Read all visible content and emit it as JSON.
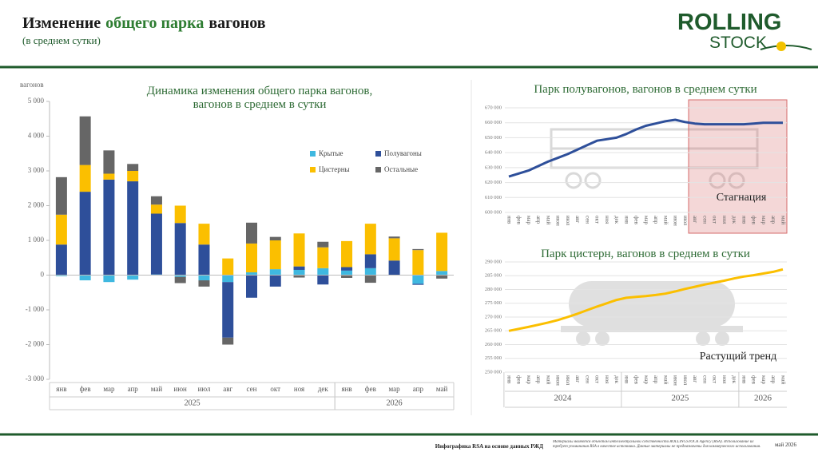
{
  "header": {
    "title_parts": [
      "Изменение",
      "общего парка",
      "вагонов"
    ],
    "subtitle": "(в среднем сутки)",
    "logo": [
      "ROLLING",
      "STOCK"
    ]
  },
  "chart_data": [
    {
      "type": "bar",
      "stacked": true,
      "title": "Динамика изменения общего парка вагонов, вагонов в среднем в сутки",
      "y_label": "вагонов",
      "categories": [
        "янв",
        "фев",
        "мар",
        "апр",
        "май",
        "июн",
        "июл",
        "авг",
        "сен",
        "окт",
        "ноя",
        "дек",
        "янв",
        "фев",
        "мар",
        "апр",
        "май"
      ],
      "year_labels": [
        "2025",
        "2026"
      ],
      "series": [
        {
          "name": "Крытые",
          "color": "#3fb8e0",
          "values": [
            -30,
            -150,
            -200,
            -130,
            20,
            -50,
            -150,
            -200,
            80,
            170,
            150,
            200,
            130,
            200,
            0,
            -250,
            120
          ]
        },
        {
          "name": "Полувагоны",
          "color": "#2e4f9a",
          "values": [
            880,
            2400,
            2750,
            2700,
            1750,
            1500,
            880,
            -1600,
            -650,
            -330,
            100,
            -270,
            100,
            400,
            420,
            -30,
            0
          ]
        },
        {
          "name": "Цистерны",
          "color": "#fbbf00",
          "values": [
            860,
            770,
            170,
            300,
            260,
            500,
            600,
            480,
            830,
            830,
            950,
            600,
            750,
            880,
            640,
            720,
            1100
          ]
        },
        {
          "name": "Остальные",
          "color": "#666666",
          "values": [
            1080,
            1400,
            670,
            200,
            240,
            -180,
            -180,
            -200,
            600,
            100,
            -70,
            160,
            -80,
            -220,
            50,
            30,
            -100
          ]
        }
      ],
      "ylim": [
        -3000,
        5000
      ],
      "yticks": [
        {
          "value": -3000,
          "label": "-3 000"
        },
        {
          "value": -2000,
          "label": "-2 000"
        },
        {
          "value": -1000,
          "label": "-1 000"
        },
        0,
        {
          "value": 1000,
          "label": "1 000"
        },
        {
          "value": 2000,
          "label": "2 000"
        },
        {
          "value": 3000,
          "label": "3 000"
        },
        {
          "value": 4000,
          "label": "4 000"
        },
        {
          "value": 5000,
          "label": "5 000"
        }
      ],
      "legend": "inside-right"
    },
    {
      "type": "line",
      "title": "Парк полувагонов, вагонов в среднем сутки",
      "annotation": "Стагнация",
      "color": "#2e4f9a",
      "categories": [
        "янв",
        "фев",
        "мар",
        "апр",
        "май",
        "июн",
        "июл",
        "авг",
        "сен",
        "окт",
        "ноя",
        "дек",
        "янв",
        "фев",
        "мар",
        "апр",
        "май",
        "июн",
        "июл",
        "авг",
        "сен",
        "окт",
        "ноя",
        "дек",
        "янв",
        "фев",
        "мар",
        "апр",
        "май"
      ],
      "values": [
        624000,
        626000,
        628000,
        631000,
        634000,
        636500,
        639000,
        642000,
        645000,
        648000,
        649000,
        650000,
        652500,
        655500,
        658000,
        659500,
        661000,
        662000,
        660500,
        659500,
        659000,
        659000,
        659000,
        659000,
        659000,
        659500,
        660000,
        660000,
        660000
      ],
      "ylim": [
        600000,
        670000
      ],
      "yticks": [
        {
          "value": 600000,
          "label": "600 000"
        },
        {
          "value": 610000,
          "label": "610 000"
        },
        {
          "value": 620000,
          "label": "620 000"
        },
        {
          "value": 630000,
          "label": "630 000"
        },
        {
          "value": 640000,
          "label": "640 000"
        },
        {
          "value": 650000,
          "label": "650 000"
        },
        {
          "value": 660000,
          "label": "660 000"
        },
        {
          "value": 670000,
          "label": "670 000"
        }
      ],
      "grid": true
    },
    {
      "type": "line",
      "title": "Парк цистерн, вагонов в среднем в сутки",
      "annotation": "Растущий тренд",
      "color": "#fbbf00",
      "categories": [
        "янв",
        "фев",
        "мар",
        "апр",
        "май",
        "июн",
        "июл",
        "авг",
        "сен",
        "окт",
        "ноя",
        "дек",
        "янв",
        "фев",
        "мар",
        "апр",
        "май",
        "июн",
        "июл",
        "авг",
        "сен",
        "окт",
        "ноя",
        "дек",
        "янв",
        "фев",
        "мар",
        "апр",
        "май"
      ],
      "year_labels": [
        "2024",
        "2025",
        "2026"
      ],
      "values": [
        265000,
        265700,
        266400,
        267200,
        268000,
        268900,
        270000,
        271200,
        272500,
        273800,
        275000,
        276200,
        277000,
        277300,
        277600,
        278000,
        278500,
        279300,
        280200,
        281000,
        281800,
        282500,
        283200,
        284000,
        284700,
        285200,
        285800,
        286400,
        287300
      ],
      "ylim": [
        250000,
        290000
      ],
      "yticks": [
        {
          "value": 250000,
          "label": "250 000"
        },
        {
          "value": 255000,
          "label": "255 000"
        },
        {
          "value": 260000,
          "label": "260 000"
        },
        {
          "value": 265000,
          "label": "265 000"
        },
        {
          "value": 270000,
          "label": "270 000"
        },
        {
          "value": 275000,
          "label": "275 000"
        },
        {
          "value": 280000,
          "label": "280 000"
        },
        {
          "value": 285000,
          "label": "285 000"
        },
        {
          "value": 290000,
          "label": "290 000"
        }
      ],
      "grid": true
    }
  ],
  "footer": {
    "source": "Инфографика RSA на основе данных РЖД",
    "disclaimer": "Материалы являются объектом интеллектуальной собственности ROLLINGSTOCK Agency (RSA). Использование их требует упоминания RSA в качестве источника. Данные материалы не предназначены для коммерческого использования.",
    "date": "май 2026"
  }
}
